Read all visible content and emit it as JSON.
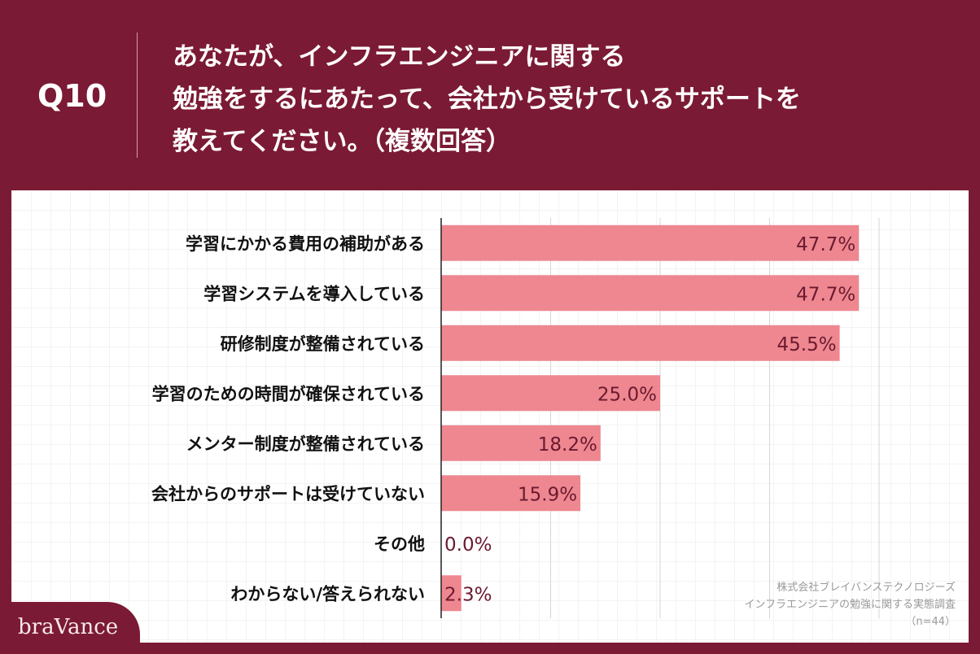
{
  "header": {
    "question_number": "Q10",
    "title_lines": [
      "あなたが、インフラエンジニアに関する",
      "勉強をするにあたって、会社から受けているサポートを",
      "教えてください。（複数回答）"
    ]
  },
  "source": {
    "lines": [
      "株式会社ブレイバンステクノロジーズ",
      "インフラエンジニアの勉強に関する実態調査",
      "（n=44）"
    ]
  },
  "logo": "braVance",
  "colors": {
    "background": "#7b1a34",
    "bar": "#ee8790",
    "value_label": "#6b1a30"
  },
  "chart_data": {
    "type": "bar",
    "orientation": "horizontal",
    "categories": [
      "学習にかかる費用の補助がある",
      "学習システムを導入している",
      "研修制度が整備されている",
      "学習のための時間が確保されている",
      "メンター制度が整備されている",
      "会社からのサポートは受けていない",
      "その他",
      "わからない/答えられない"
    ],
    "values": [
      47.7,
      47.7,
      45.5,
      25.0,
      18.2,
      15.9,
      0.0,
      2.3
    ],
    "value_labels": [
      "47.7%",
      "47.7%",
      "45.5%",
      "25.0%",
      "18.2%",
      "15.9%",
      "0.0%",
      "2.3%"
    ],
    "xlim": [
      0,
      50
    ],
    "grid_step": 12.5,
    "grid": true
  }
}
